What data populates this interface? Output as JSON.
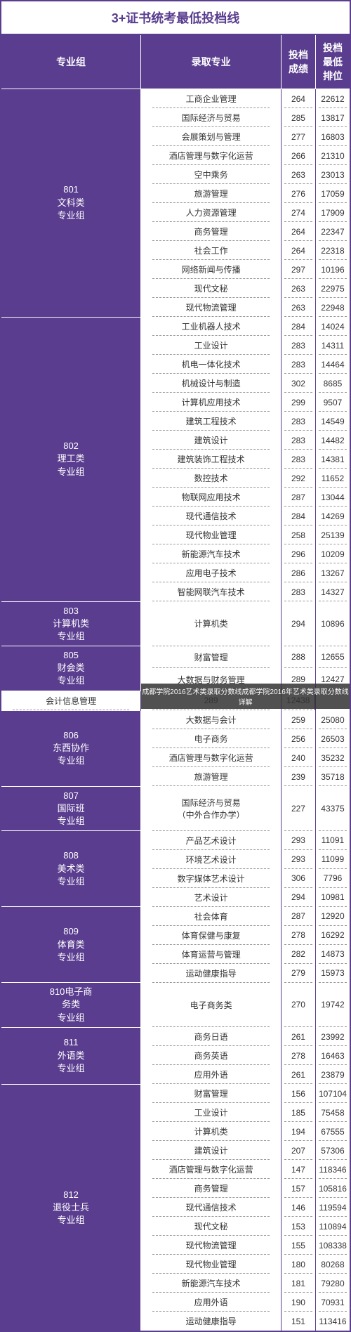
{
  "title": "3+证书统考最低投档线",
  "headers": [
    "专业组",
    "录取专业",
    "投档成绩",
    "投档最低排位"
  ],
  "overlay_text": "成都学院2016艺术类录取分数线成都学院2016年艺术类录取分数线详解",
  "groups": [
    {
      "code": "801",
      "name": "文科类\n专业组",
      "rows": [
        {
          "major": "工商企业管理",
          "score": "264",
          "rank": "22612"
        },
        {
          "major": "国际经济与贸易",
          "score": "285",
          "rank": "13817"
        },
        {
          "major": "会展策划与管理",
          "score": "277",
          "rank": "16803"
        },
        {
          "major": "酒店管理与数字化运营",
          "score": "266",
          "rank": "21310"
        },
        {
          "major": "空中乘务",
          "score": "263",
          "rank": "23013"
        },
        {
          "major": "旅游管理",
          "score": "276",
          "rank": "17059"
        },
        {
          "major": "人力资源管理",
          "score": "274",
          "rank": "17909"
        },
        {
          "major": "商务管理",
          "score": "264",
          "rank": "22347"
        },
        {
          "major": "社会工作",
          "score": "264",
          "rank": "22318"
        },
        {
          "major": "网络新闻与传播",
          "score": "297",
          "rank": "10196"
        },
        {
          "major": "现代文秘",
          "score": "263",
          "rank": "22975"
        },
        {
          "major": "现代物流管理",
          "score": "263",
          "rank": "22948"
        }
      ]
    },
    {
      "code": "802",
      "name": "理工类\n专业组",
      "rows": [
        {
          "major": "工业机器人技术",
          "score": "284",
          "rank": "14024"
        },
        {
          "major": "工业设计",
          "score": "283",
          "rank": "14311"
        },
        {
          "major": "机电一体化技术",
          "score": "283",
          "rank": "14464"
        },
        {
          "major": "机械设计与制造",
          "score": "302",
          "rank": "8685"
        },
        {
          "major": "计算机应用技术",
          "score": "299",
          "rank": "9507"
        },
        {
          "major": "建筑工程技术",
          "score": "283",
          "rank": "14549"
        },
        {
          "major": "建筑设计",
          "score": "283",
          "rank": "14482"
        },
        {
          "major": "建筑装饰工程技术",
          "score": "283",
          "rank": "14381"
        },
        {
          "major": "数控技术",
          "score": "292",
          "rank": "11652"
        },
        {
          "major": "物联网应用技术",
          "score": "287",
          "rank": "13044"
        },
        {
          "major": "现代通信技术",
          "score": "284",
          "rank": "14269"
        },
        {
          "major": "现代物业管理",
          "score": "258",
          "rank": "25139"
        },
        {
          "major": "新能源汽车技术",
          "score": "296",
          "rank": "10209"
        },
        {
          "major": "应用电子技术",
          "score": "286",
          "rank": "13267"
        },
        {
          "major": "智能网联汽车技术",
          "score": "283",
          "rank": "14327"
        }
      ]
    },
    {
      "code": "803",
      "name": "计算机类\n专业组",
      "rows": [
        {
          "major": "计算机类",
          "score": "294",
          "rank": "10896"
        }
      ]
    },
    {
      "code": "805",
      "name": "财会类\n专业组",
      "overlay_after": 2,
      "rows": [
        {
          "major": "财富管理",
          "score": "288",
          "rank": "12655"
        },
        {
          "major": "大数据与财务管理",
          "score": "289",
          "rank": "12427"
        },
        {
          "major": "会计信息管理",
          "score": "289",
          "rank": "12438"
        }
      ]
    },
    {
      "code": "806",
      "name": "东西协作\n专业组",
      "rows": [
        {
          "major": "大数据与会计",
          "score": "259",
          "rank": "25080"
        },
        {
          "major": "电子商务",
          "score": "256",
          "rank": "26503"
        },
        {
          "major": "酒店管理与数字化运营",
          "score": "240",
          "rank": "35232"
        },
        {
          "major": "旅游管理",
          "score": "239",
          "rank": "35718"
        }
      ]
    },
    {
      "code": "807",
      "name": "国际班\n专业组",
      "rows": [
        {
          "major": "国际经济与贸易\n（中外合作办学）",
          "score": "227",
          "rank": "43375"
        }
      ]
    },
    {
      "code": "808",
      "name": "美术类\n专业组",
      "rows": [
        {
          "major": "产品艺术设计",
          "score": "293",
          "rank": "11091"
        },
        {
          "major": "环境艺术设计",
          "score": "293",
          "rank": "11099"
        },
        {
          "major": "数字媒体艺术设计",
          "score": "306",
          "rank": "7796"
        },
        {
          "major": "艺术设计",
          "score": "294",
          "rank": "10981"
        }
      ]
    },
    {
      "code": "809",
      "name": "体育类\n专业组",
      "rows": [
        {
          "major": "社会体育",
          "score": "287",
          "rank": "12920"
        },
        {
          "major": "体育保健与康复",
          "score": "278",
          "rank": "16292"
        },
        {
          "major": "体育运营与管理",
          "score": "282",
          "rank": "14873"
        },
        {
          "major": "运动健康指导",
          "score": "279",
          "rank": "15973"
        }
      ]
    },
    {
      "code": "810",
      "name": "电子商\n务类\n专业组",
      "inline_code": true,
      "rows": [
        {
          "major": "电子商务类",
          "score": "270",
          "rank": "19742"
        }
      ]
    },
    {
      "code": "811",
      "name": "外语类\n专业组",
      "rows": [
        {
          "major": "商务日语",
          "score": "261",
          "rank": "23992"
        },
        {
          "major": "商务英语",
          "score": "278",
          "rank": "16463"
        },
        {
          "major": "应用外语",
          "score": "261",
          "rank": "23879"
        }
      ]
    },
    {
      "code": "812",
      "name": "退役士兵\n专业组",
      "rows": [
        {
          "major": "财富管理",
          "score": "156",
          "rank": "107104"
        },
        {
          "major": "工业设计",
          "score": "185",
          "rank": "75458"
        },
        {
          "major": "计算机类",
          "score": "194",
          "rank": "67555"
        },
        {
          "major": "建筑设计",
          "score": "207",
          "rank": "57306"
        },
        {
          "major": "酒店管理与数字化运营",
          "score": "147",
          "rank": "118346"
        },
        {
          "major": "商务管理",
          "score": "157",
          "rank": "105816"
        },
        {
          "major": "现代通信技术",
          "score": "146",
          "rank": "119594"
        },
        {
          "major": "现代文秘",
          "score": "153",
          "rank": "110894"
        },
        {
          "major": "现代物流管理",
          "score": "155",
          "rank": "108338"
        },
        {
          "major": "现代物业管理",
          "score": "180",
          "rank": "80268"
        },
        {
          "major": "新能源汽车技术",
          "score": "181",
          "rank": "79280"
        },
        {
          "major": "应用外语",
          "score": "190",
          "rank": "70931"
        },
        {
          "major": "运动健康指导",
          "score": "151",
          "rank": "113416"
        }
      ]
    }
  ]
}
